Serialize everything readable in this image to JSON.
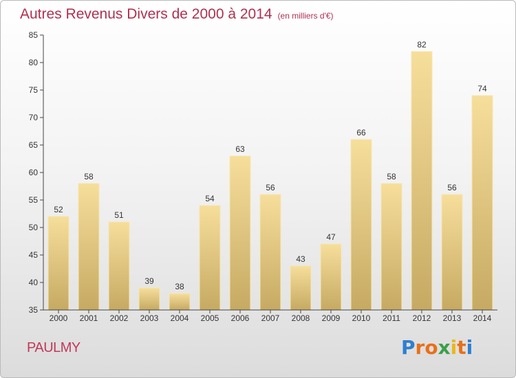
{
  "title": "Autres Revenus Divers de 2000 à 2014",
  "subtitle": "(en milliers d'€)",
  "commune": "PAULMY",
  "logo": {
    "text": "Proxiti",
    "colors": [
      "#2f7fd0",
      "#e8701a",
      "#e8701a",
      "#3aa04a",
      "#e8b81a",
      "#e8701a",
      "#2f7fd0"
    ]
  },
  "colors": {
    "title": "#b0304f",
    "bar_light": "#f5dc98",
    "bar_dark": "#c9ad66",
    "axis": "#444444"
  },
  "chart_data": {
    "type": "bar",
    "categories": [
      "2000",
      "2001",
      "2002",
      "2003",
      "2004",
      "2005",
      "2006",
      "2007",
      "2008",
      "2009",
      "2010",
      "2011",
      "2012",
      "2013",
      "2014"
    ],
    "values": [
      52,
      58,
      51,
      39,
      38,
      54,
      63,
      56,
      43,
      47,
      66,
      58,
      82,
      56,
      74
    ],
    "ylim": [
      35,
      85
    ],
    "yticks": [
      35,
      40,
      45,
      50,
      55,
      60,
      65,
      70,
      75,
      80,
      85
    ],
    "grid": false,
    "data_labels": true
  }
}
